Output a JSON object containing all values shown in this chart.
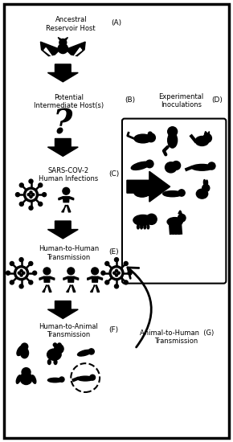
{
  "bg_color": "#ffffff",
  "border_color": "#111111",
  "figsize": [
    2.9,
    5.5
  ],
  "dpi": 100,
  "labels": {
    "A": "Ancestral\nReservoir Host",
    "B": "Potential\nIntermediate Host(s)",
    "C": "SARS-COV-2\nHuman Infections",
    "D": "Experimental\nInoculations",
    "E": "Human-to-Human\nTransmission",
    "F": "Human-to-Animal\nTransmission",
    "G": "Animal-to-Human  (G)\nTransmission"
  },
  "fs_label": 6.0,
  "fs_letter": 6.5
}
